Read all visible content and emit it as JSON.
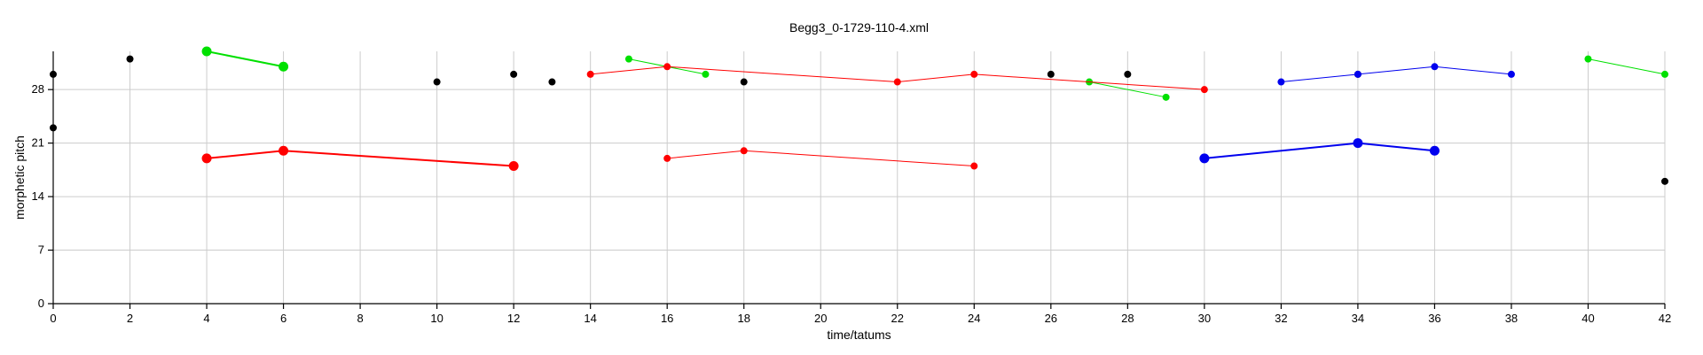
{
  "chart_data": {
    "type": "scatter",
    "title": "Begg3_0-1729-110-4.xml",
    "xlabel": "time/tatums",
    "ylabel": "morphetic pitch",
    "xlim": [
      0,
      42
    ],
    "ylim": [
      0,
      33
    ],
    "xticks": [
      0,
      2,
      4,
      6,
      8,
      10,
      12,
      14,
      16,
      18,
      20,
      22,
      24,
      26,
      28,
      30,
      32,
      34,
      36,
      38,
      40,
      42
    ],
    "yticks": [
      0,
      7,
      14,
      21,
      28
    ],
    "grid": true,
    "series": [
      {
        "color": "#000000",
        "line": false,
        "size": "small",
        "points": [
          [
            0,
            30
          ],
          [
            0,
            23
          ],
          [
            2,
            32
          ],
          [
            10,
            29
          ],
          [
            12,
            30
          ],
          [
            13,
            29
          ],
          [
            18,
            29
          ],
          [
            26,
            30
          ],
          [
            28,
            30
          ],
          [
            34,
            30
          ],
          [
            42,
            16
          ]
        ]
      },
      {
        "color": "#00e000",
        "line": true,
        "size": "large",
        "points": [
          [
            4,
            33
          ],
          [
            6,
            31
          ]
        ]
      },
      {
        "color": "#00e000",
        "line": true,
        "size": "small",
        "points": [
          [
            15,
            32
          ],
          [
            17,
            30
          ]
        ]
      },
      {
        "color": "#00e000",
        "line": true,
        "size": "small",
        "points": [
          [
            27,
            29
          ],
          [
            29,
            27
          ]
        ]
      },
      {
        "color": "#00e000",
        "line": true,
        "size": "small",
        "points": [
          [
            40,
            32
          ],
          [
            42,
            30
          ]
        ]
      },
      {
        "color": "#ff0000",
        "line": true,
        "size": "large",
        "points": [
          [
            4,
            19
          ],
          [
            6,
            20
          ],
          [
            12,
            18
          ]
        ]
      },
      {
        "color": "#ff0000",
        "line": true,
        "size": "small",
        "points": [
          [
            14,
            30
          ],
          [
            16,
            31
          ],
          [
            22,
            29
          ],
          [
            24,
            30
          ],
          [
            30,
            28
          ]
        ]
      },
      {
        "color": "#ff0000",
        "line": true,
        "size": "small",
        "points": [
          [
            16,
            19
          ],
          [
            18,
            20
          ],
          [
            24,
            18
          ]
        ]
      },
      {
        "color": "#0000ee",
        "line": true,
        "size": "small",
        "points": [
          [
            32,
            29
          ],
          [
            34,
            30
          ],
          [
            36,
            31
          ],
          [
            38,
            30
          ]
        ]
      },
      {
        "color": "#0000ee",
        "line": true,
        "size": "large",
        "points": [
          [
            30,
            19
          ],
          [
            34,
            21
          ],
          [
            36,
            20
          ]
        ]
      }
    ]
  }
}
